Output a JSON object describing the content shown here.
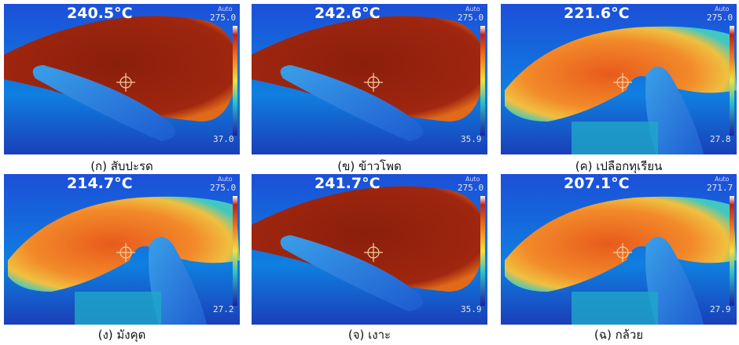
{
  "panels": [
    {
      "temperature": "240.5°C",
      "mode": "Auto",
      "scale_max": "275.0",
      "scale_min": "37.0",
      "caption": "(ก) สับปะรด"
    },
    {
      "temperature": "242.6°C",
      "mode": "Auto",
      "scale_max": "275.0",
      "scale_min": "35.9",
      "caption": "(ข) ข้าวโพด"
    },
    {
      "temperature": "221.6°C",
      "mode": "Auto",
      "scale_max": "275.0",
      "scale_min": "27.8",
      "caption": "(ค) เปลือกทุเรียน"
    },
    {
      "temperature": "214.7°C",
      "mode": "Auto",
      "scale_max": "275.0",
      "scale_min": "27.2",
      "caption": "(ง) มังคุด"
    },
    {
      "temperature": "241.7°C",
      "mode": "Auto",
      "scale_max": "275.0",
      "scale_min": "35.9",
      "caption": "(จ) เงาะ"
    },
    {
      "temperature": "207.1°C",
      "mode": "Auto",
      "scale_max": "271.7",
      "scale_min": "27.9",
      "caption": "(ฉ) กล้วย"
    }
  ]
}
